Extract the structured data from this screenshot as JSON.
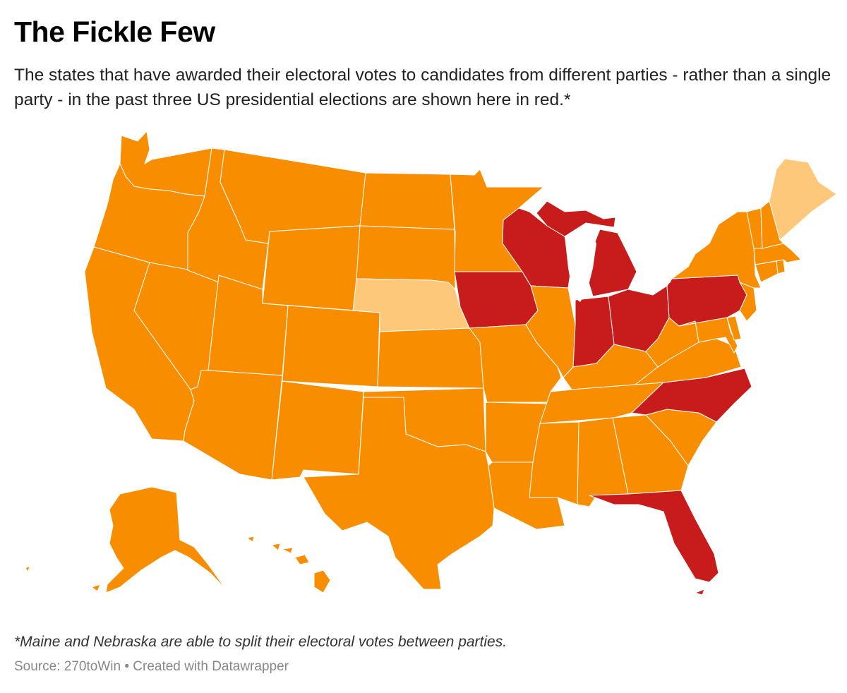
{
  "header": {
    "title": "The Fickle Few",
    "subtitle": "The states that have awarded their electoral votes to candidates from different parties - rather than a single party - in the past three US presidential elections are shown here in red.*"
  },
  "map": {
    "colors": {
      "single_party": "#f88d00",
      "split_capable": "#fdc87a",
      "swing": "#c81c1c",
      "border": "#ffffff"
    },
    "swing_states": [
      "Wisconsin",
      "Michigan",
      "Iowa",
      "Indiana",
      "Ohio",
      "Pennsylvania",
      "North Carolina",
      "Florida"
    ],
    "split_capable_states": [
      "Maine",
      "Nebraska"
    ]
  },
  "footer": {
    "footnote": "*Maine and Nebraska are able to split their electoral votes between parties.",
    "source_label": "Source:",
    "source_name": "270toWin",
    "separator": "•",
    "credit": "Created with Datawrapper"
  }
}
